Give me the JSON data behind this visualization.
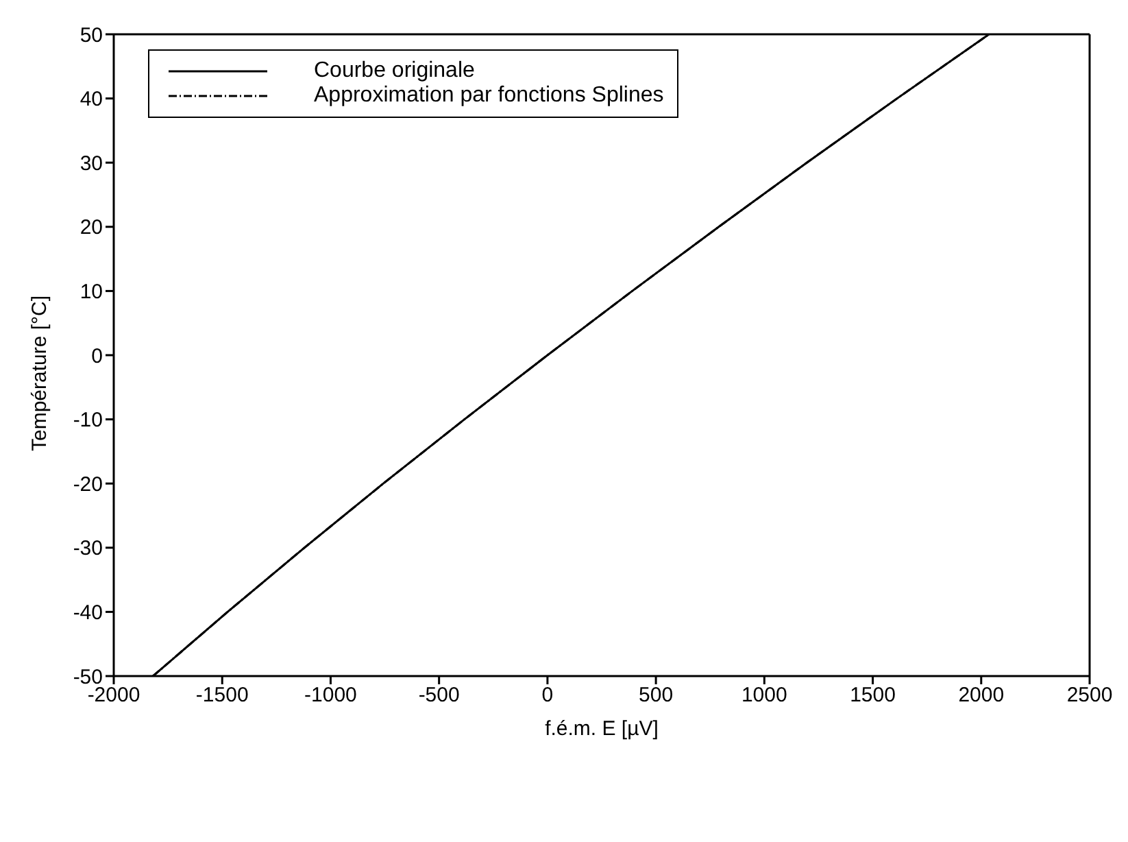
{
  "chart_data": {
    "type": "line",
    "xlabel": "f.é.m. E [µV]",
    "ylabel": "Température [°C]",
    "x": [
      -1819,
      -1475,
      -1121,
      -757,
      -383,
      0,
      391,
      790,
      1196,
      1612,
      2036
    ],
    "series": [
      {
        "name": "Courbe originale",
        "color": "#000000",
        "line_style": "solid",
        "values": [
          -50,
          -40,
          -30,
          -20,
          -10,
          0,
          10,
          20,
          30,
          40,
          50
        ]
      },
      {
        "name": "Approximation par fonctions Splines",
        "color": "#000000",
        "line_style": "dashed",
        "values": [
          -50,
          -40,
          -30,
          -20,
          -10,
          0,
          10,
          20,
          30,
          40,
          50
        ]
      }
    ],
    "xlim": [
      -2000,
      2500
    ],
    "xticks": [
      -2000,
      -1500,
      -1000,
      -500,
      0,
      500,
      1000,
      1500,
      2000,
      2500
    ],
    "ylim": [
      -50,
      50
    ],
    "yticks": [
      -50,
      -40,
      -30,
      -20,
      -10,
      0,
      10,
      20,
      30,
      40,
      50
    ],
    "grid": false,
    "legend": "top left",
    "marker": "none"
  }
}
